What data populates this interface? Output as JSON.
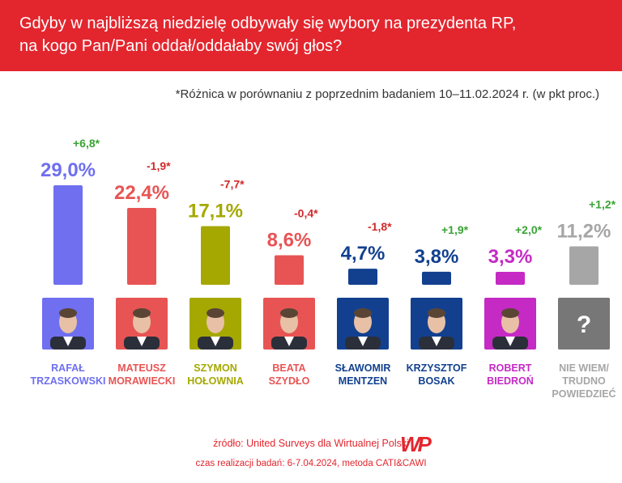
{
  "header": {
    "line1": "Gdyby w najbliższą niedzielę odbywały się wybory na prezydenta RP,",
    "line2": "na kogo Pan/Pani oddał/oddałaby swój głos?"
  },
  "note": "*Różnica w porównaniu z poprzednim badaniem 10–11.02.2024 r. (w pkt proc.)",
  "footer": {
    "source": "źródło: United Surveys dla Wirtualnej Polski",
    "time": "czas realizacji badań: 6-7.04.2024, metoda CATI&CAWI",
    "logo_text": "WP"
  },
  "chart_data": {
    "type": "bar",
    "title": "Gdyby w najbliższą niedzielę odbywały się wybory na prezydenta RP, na kogo Pan/Pani oddał/oddałaby swój głos?",
    "ylabel": "%",
    "ylim": [
      0,
      30
    ],
    "candidates": [
      {
        "name_line1": "RAFAŁ",
        "name_line2": "TRZASKOWSKI",
        "name_line3": "",
        "value": 29.0,
        "label": "29,0%",
        "change": 6.8,
        "change_label": "+6,8*",
        "color": "#6f6ff0",
        "change_color": "#3aa335",
        "portrait": "person"
      },
      {
        "name_line1": "MATEUSZ",
        "name_line2": "MORAWIECKI",
        "name_line3": "",
        "value": 22.4,
        "label": "22,4%",
        "change": -1.9,
        "change_label": "-1,9*",
        "color": "#e85454",
        "change_color": "#d12a2a",
        "portrait": "person"
      },
      {
        "name_line1": "SZYMON",
        "name_line2": "HOŁOWNIA",
        "name_line3": "",
        "value": 17.1,
        "label": "17,1%",
        "change": -7.7,
        "change_label": "-7,7*",
        "color": "#a5a800",
        "change_color": "#d12a2a",
        "portrait": "person"
      },
      {
        "name_line1": "BEATA",
        "name_line2": "SZYDŁO",
        "name_line3": "",
        "value": 8.6,
        "label": "8,6%",
        "change": -0.4,
        "change_label": "-0,4*",
        "color": "#e85454",
        "change_color": "#d12a2a",
        "portrait": "person"
      },
      {
        "name_line1": "SŁAWOMIR",
        "name_line2": "MENTZEN",
        "name_line3": "",
        "value": 4.7,
        "label": "4,7%",
        "change": -1.8,
        "change_label": "-1,8*",
        "color": "#12408f",
        "change_color": "#d12a2a",
        "portrait": "person"
      },
      {
        "name_line1": "KRZYSZTOF",
        "name_line2": "BOSAK",
        "name_line3": "",
        "value": 3.8,
        "label": "3,8%",
        "change": 1.9,
        "change_label": "+1,9*",
        "color": "#12408f",
        "change_color": "#3aa335",
        "portrait": "person"
      },
      {
        "name_line1": "ROBERT",
        "name_line2": "BIEDROŃ",
        "name_line3": "",
        "value": 3.3,
        "label": "3,3%",
        "change": 2.0,
        "change_label": "+2,0*",
        "color": "#c52ac5",
        "change_color": "#3aa335",
        "portrait": "person"
      },
      {
        "name_line1": "NIE WIEM/",
        "name_line2": "TRUDNO",
        "name_line3": "POWIEDZIEĆ",
        "value": 11.2,
        "label": "11,2%",
        "change": 1.2,
        "change_label": "+1,2*",
        "color": "#a6a6a6",
        "change_color": "#3aa335",
        "portrait": "question",
        "portrait_text": "?"
      }
    ]
  }
}
